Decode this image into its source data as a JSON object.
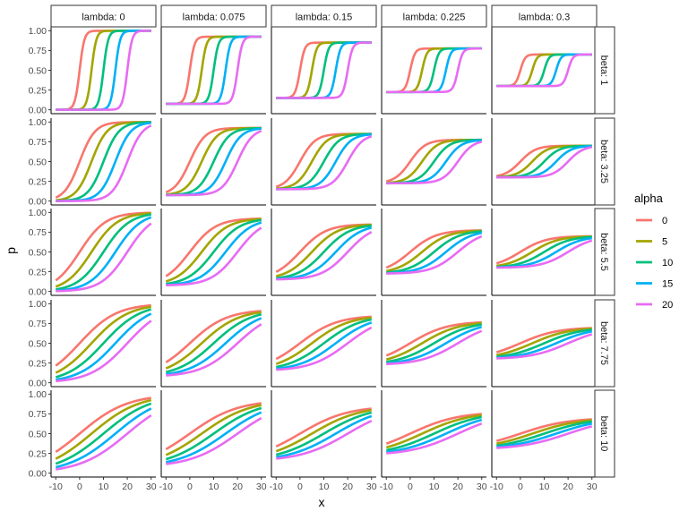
{
  "chart_data": {
    "type": "line",
    "facet_cols": {
      "var": "lambda",
      "values": [
        0,
        0.075,
        0.15,
        0.225,
        0.3
      ]
    },
    "facet_rows": {
      "var": "beta",
      "values": [
        1,
        3.25,
        5.5,
        7.75,
        10
      ]
    },
    "col_strip_labels": [
      "lambda: 0",
      "lambda: 0.075",
      "lambda: 0.15",
      "lambda: 0.225",
      "lambda: 0.3"
    ],
    "row_strip_labels": [
      "beta: 1",
      "beta: 3.25",
      "beta: 5.5",
      "beta: 7.75",
      "beta: 10"
    ],
    "xlabel": "x",
    "ylabel": "p",
    "xlim": [
      -10,
      30
    ],
    "ylim": [
      0,
      1
    ],
    "x_ticks": [
      -10,
      0,
      10,
      20,
      30
    ],
    "x_tick_labels": [
      "-10",
      "0",
      "10",
      "20",
      "30"
    ],
    "y_ticks": [
      0,
      0.25,
      0.5,
      0.75,
      1
    ],
    "y_tick_labels": [
      "0.00",
      "0.25",
      "0.50",
      "0.75",
      "1.00"
    ],
    "grid": false,
    "legend": {
      "title": "alpha",
      "position": "right",
      "entries": [
        {
          "label": "0",
          "value": 0,
          "color": "#F8766D"
        },
        {
          "label": "5",
          "value": 5,
          "color": "#A3A500"
        },
        {
          "label": "10",
          "value": 10,
          "color": "#00BF7D"
        },
        {
          "label": "15",
          "value": 15,
          "color": "#00B0F6"
        },
        {
          "label": "20",
          "value": 20,
          "color": "#E76BF3"
        }
      ]
    },
    "model": "p = lambda + (1 - 2*lambda) * logistic((x - alpha) / beta)"
  }
}
